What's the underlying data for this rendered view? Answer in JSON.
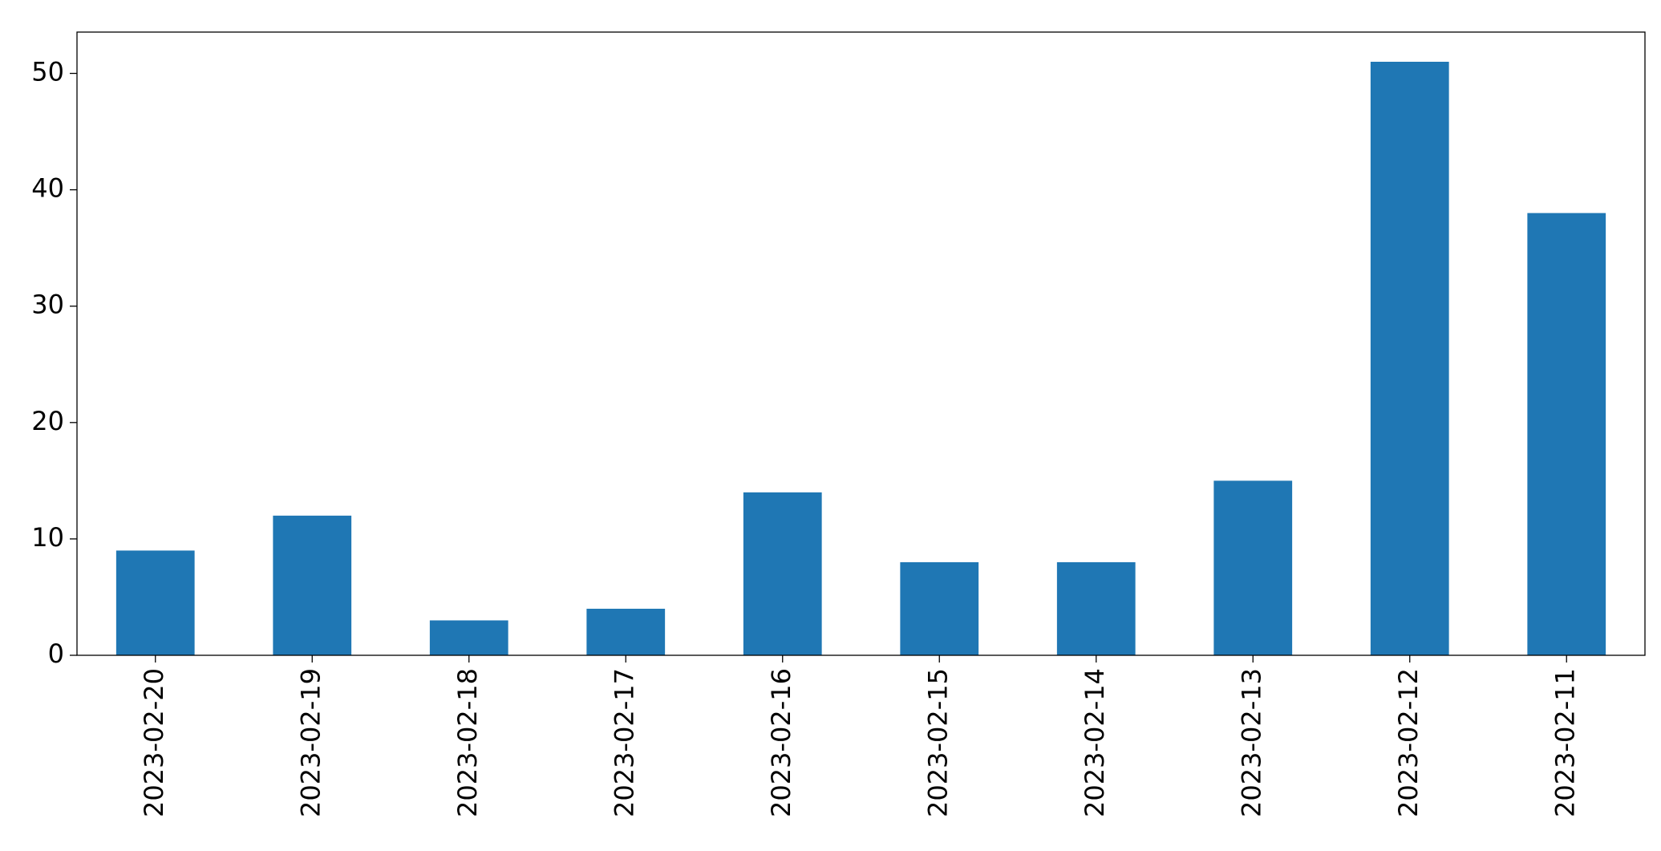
{
  "chart_data": {
    "type": "bar",
    "categories": [
      "2023-02-20",
      "2023-02-19",
      "2023-02-18",
      "2023-02-17",
      "2023-02-16",
      "2023-02-15",
      "2023-02-14",
      "2023-02-13",
      "2023-02-12",
      "2023-02-11"
    ],
    "values": [
      9,
      12,
      3,
      4,
      14,
      8,
      8,
      15,
      51,
      38
    ],
    "color": "#1f77b4",
    "ylim": [
      0,
      53.55
    ],
    "yticks": [
      0,
      10,
      20,
      30,
      40,
      50
    ],
    "grid": false
  }
}
